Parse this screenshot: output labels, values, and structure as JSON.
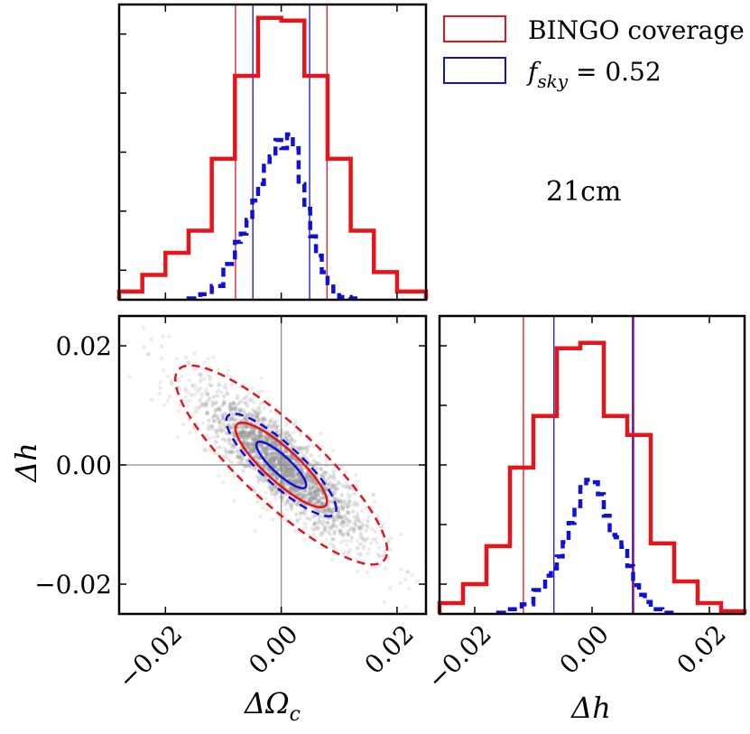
{
  "chart_data": {
    "type": "corner",
    "legend": {
      "placement": "top-right",
      "entries": [
        {
          "label": "BINGO coverage",
          "color": "#e8141c"
        },
        {
          "label_main": "f",
          "label_sub": "sky",
          "label_rest": " = 0.52",
          "color": "#1010d8"
        }
      ]
    },
    "annotation": "21cm",
    "colors": {
      "red": "#e8141c",
      "blue": "#1010d8",
      "scatter": "#9a9a9a",
      "guide": "#8c8c8c"
    },
    "xlim": [
      -0.028,
      0.025
    ],
    "ylim": [
      -0.025,
      0.025
    ],
    "top_panel": {
      "xlabel": "",
      "red_hist": {
        "edges": [
          -0.028,
          -0.024,
          -0.02,
          -0.016,
          -0.012,
          -0.008,
          -0.004,
          0.0,
          0.004,
          0.008,
          0.012,
          0.016,
          0.02,
          0.025
        ],
        "counts": [
          0.03,
          0.09,
          0.17,
          0.25,
          0.51,
          0.81,
          1.02,
          1.01,
          0.81,
          0.51,
          0.25,
          0.1,
          0.03
        ]
      },
      "blue_hist": {
        "edges": [
          -0.016,
          -0.014,
          -0.012,
          -0.01,
          -0.008,
          -0.007,
          -0.006,
          -0.005,
          -0.004,
          -0.003,
          -0.002,
          -0.001,
          0.0,
          0.001,
          0.002,
          0.003,
          0.004,
          0.005,
          0.006,
          0.007,
          0.008,
          0.009,
          0.01,
          0.012,
          0.014
        ],
        "counts": [
          0.005,
          0.02,
          0.05,
          0.13,
          0.21,
          0.24,
          0.29,
          0.36,
          0.42,
          0.5,
          0.52,
          0.58,
          0.55,
          0.6,
          0.55,
          0.42,
          0.33,
          0.23,
          0.16,
          0.1,
          0.06,
          0.03,
          0.01,
          0.005
        ]
      },
      "red_vlines": [
        -0.0079,
        0.0079
      ],
      "blue_vlines": [
        -0.0049,
        0.0049
      ]
    },
    "scatter_panel": {
      "xlabel": "ΔΩc",
      "xlabel_main": "ΔΩ",
      "xlabel_sub": "c",
      "ylabel": "Δh",
      "xticks": [
        -0.02,
        0.0,
        0.02
      ],
      "xtick_labels": [
        "−0.02",
        "0.00",
        "0.02"
      ],
      "yticks": [
        -0.02,
        0.0,
        0.02
      ],
      "ytick_labels": [
        "−0.02",
        "0.00",
        "0.02"
      ],
      "crosshair": {
        "x": 0.0,
        "y": 0.0
      },
      "correlation": -0.86,
      "red_contours": [
        {
          "level": "68%",
          "sx": 0.0079,
          "sy": 0.0071,
          "style": "solid"
        },
        {
          "level": "95%",
          "sx": 0.0183,
          "sy": 0.0167,
          "style": "dashed"
        }
      ],
      "blue_contours": [
        {
          "level": "68%",
          "sx": 0.0043,
          "sy": 0.0039,
          "style": "solid"
        },
        {
          "level": "95%",
          "sx": 0.0095,
          "sy": 0.0086,
          "style": "dashed"
        }
      ]
    },
    "right_panel": {
      "xlabel": "Δh",
      "xticks": [
        -0.02,
        0.0,
        0.02
      ],
      "xtick_labels": [
        "−0.02",
        "0.00",
        "0.02"
      ],
      "red_hist": {
        "edges": [
          -0.026,
          -0.022,
          -0.018,
          -0.014,
          -0.01,
          -0.006,
          -0.002,
          0.002,
          0.006,
          0.01,
          0.014,
          0.018,
          0.022,
          0.026
        ],
        "counts": [
          0.04,
          0.11,
          0.25,
          0.54,
          0.73,
          0.98,
          1.0,
          0.73,
          0.66,
          0.26,
          0.12,
          0.04,
          0.01
        ]
      },
      "blue_hist": {
        "edges": [
          -0.016,
          -0.014,
          -0.012,
          -0.01,
          -0.008,
          -0.007,
          -0.006,
          -0.005,
          -0.004,
          -0.003,
          -0.002,
          -0.001,
          0.0,
          0.001,
          0.002,
          0.003,
          0.004,
          0.005,
          0.006,
          0.007,
          0.008,
          0.009,
          0.01,
          0.012,
          0.014
        ],
        "counts": [
          0.005,
          0.02,
          0.04,
          0.1,
          0.16,
          0.19,
          0.24,
          0.3,
          0.38,
          0.45,
          0.53,
          0.56,
          0.55,
          0.5,
          0.41,
          0.33,
          0.32,
          0.28,
          0.2,
          0.12,
          0.08,
          0.05,
          0.02,
          0.005
        ]
      },
      "red_vlines": [
        -0.0117,
        0.0071
      ],
      "blue_vlines": [
        -0.0065,
        0.0069
      ]
    }
  }
}
